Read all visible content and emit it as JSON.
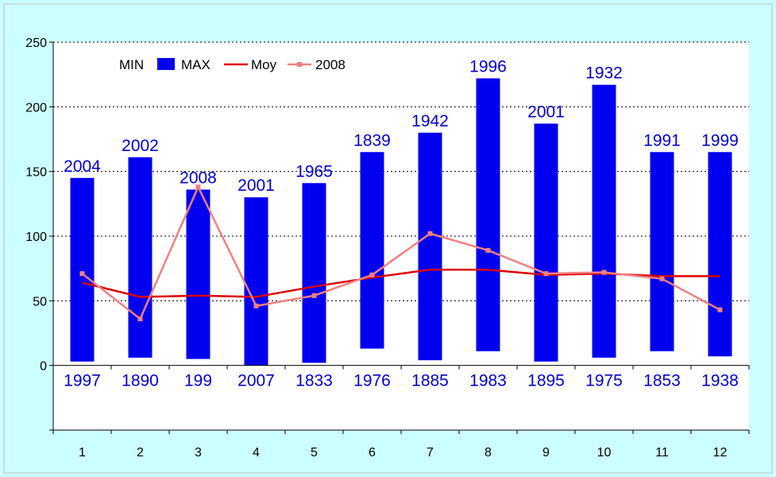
{
  "chart_data": {
    "type": "bar",
    "categories": [
      "1",
      "2",
      "3",
      "4",
      "5",
      "6",
      "7",
      "8",
      "9",
      "10",
      "11",
      "12"
    ],
    "ylim": [
      -50,
      250
    ],
    "yticks": [
      0,
      50,
      100,
      150,
      200,
      250
    ],
    "grid": true,
    "legend_position": "top-left",
    "legend": {
      "min": "MIN",
      "max": "MAX",
      "moy": "Moy",
      "y2008": "2008"
    },
    "series": [
      {
        "name": "MIN",
        "values": [
          3,
          6,
          5,
          0,
          2,
          13,
          4,
          11,
          3,
          6,
          11,
          7
        ]
      },
      {
        "name": "MAX",
        "values": [
          145,
          161,
          136,
          130,
          141,
          165,
          180,
          222,
          187,
          217,
          165,
          165
        ]
      },
      {
        "name": "Moy",
        "values": [
          64,
          53,
          54,
          53,
          61,
          68,
          74,
          74,
          70,
          71,
          69,
          69
        ]
      },
      {
        "name": "2008",
        "values": [
          71,
          36,
          138,
          46,
          54,
          70,
          102,
          89,
          71,
          72,
          67,
          43
        ]
      }
    ],
    "max_year_labels": [
      "2004",
      "2002",
      "2008",
      "2001",
      "1965",
      "1839",
      "1942",
      "1996",
      "2001",
      "1932",
      "1991",
      "1999"
    ],
    "min_year_labels": [
      "1997",
      "1890",
      "199",
      "2007",
      "1833",
      "1976",
      "1885",
      "1983",
      "1895",
      "1975",
      "1853",
      "1938"
    ],
    "colors": {
      "bars": "#0000ee",
      "moy": "#e00000",
      "y2008": "#f08080",
      "labels": "#0000cc",
      "background": "#ccffff",
      "plot": "#ffffff"
    }
  }
}
